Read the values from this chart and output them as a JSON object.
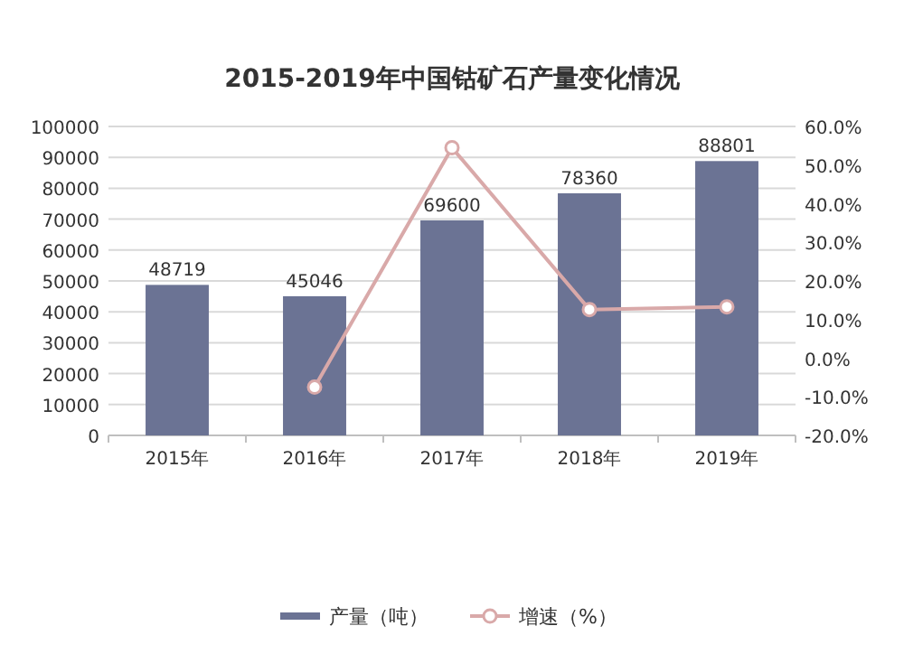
{
  "chart_data": {
    "type": "bar",
    "title": "2015-2019年中国钴矿石产量变化情况",
    "categories": [
      "2015年",
      "2016年",
      "2017年",
      "2018年",
      "2019年"
    ],
    "series": [
      {
        "name": "产量（吨）",
        "color": "#6b7394",
        "values": [
          48719,
          45046,
          69600,
          78360,
          88801
        ],
        "value_labels": [
          "48719",
          "45046",
          "69600",
          "78360",
          "88801"
        ]
      },
      {
        "name": "增速（%）",
        "type": "line",
        "axis": "y2",
        "color": "#d9a9a9",
        "marker": "circle",
        "values": [
          null,
          -7.5,
          54.5,
          12.6,
          13.3
        ]
      }
    ],
    "ylim": [
      0,
      100000
    ],
    "yticks": [
      0,
      10000,
      20000,
      30000,
      40000,
      50000,
      60000,
      70000,
      80000,
      90000,
      100000
    ],
    "y2lim": [
      -20,
      60
    ],
    "y2ticks": [
      {
        "value": -20,
        "label": "-20.0%"
      },
      {
        "value": -10,
        "label": "-10.0%"
      },
      {
        "value": 0,
        "label": "0.0%"
      },
      {
        "value": 10,
        "label": "10.0%"
      },
      {
        "value": 20,
        "label": "20.0%"
      },
      {
        "value": 30,
        "label": "30.0%"
      },
      {
        "value": 40,
        "label": "40.0%"
      },
      {
        "value": 50,
        "label": "50.0%"
      },
      {
        "value": 60,
        "label": "60.0%"
      }
    ],
    "grid": "y",
    "legend": "bottom"
  }
}
